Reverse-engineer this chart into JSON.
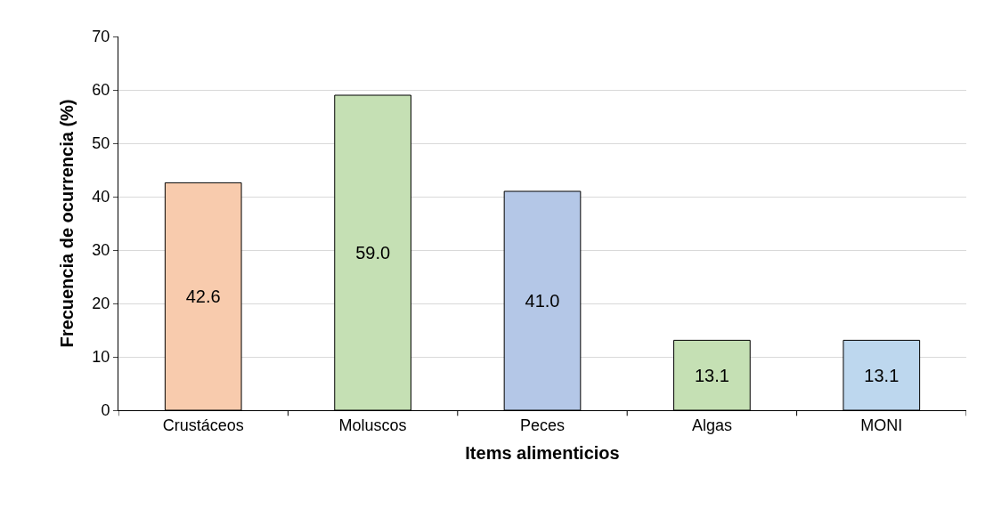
{
  "chart_data": {
    "type": "bar",
    "xlabel": "Items alimenticios",
    "ylabel": "Frecuencia de ocurrencia (%)",
    "categories": [
      "Crustáceos",
      "Moluscos",
      "Peces",
      "Algas",
      "MONI"
    ],
    "values": [
      42.6,
      59.0,
      41.0,
      13.1,
      13.1
    ],
    "colors": [
      "#f8cbad",
      "#c5e0b4",
      "#b4c7e7",
      "#c5e0b4",
      "#bdd7ee"
    ],
    "value_labels": [
      "42.6",
      "59.0",
      "41.0",
      "13.1",
      "13.1"
    ],
    "ylim": [
      0,
      70
    ],
    "yticks": [
      0,
      10,
      20,
      30,
      40,
      50,
      60,
      70
    ],
    "grid": "y"
  }
}
